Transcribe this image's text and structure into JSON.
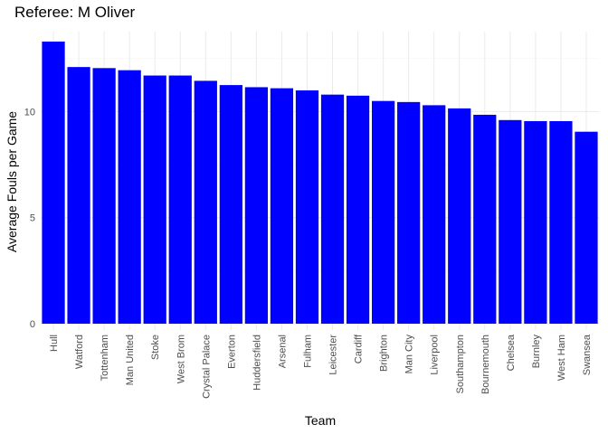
{
  "chart_data": {
    "type": "bar",
    "title": "Referee: M Oliver",
    "xlabel": "Team",
    "ylabel": "Average Fouls per Game",
    "categories": [
      "Hull",
      "Watford",
      "Tottenham",
      "Man United",
      "Stoke",
      "West Brom",
      "Crystal Palace",
      "Everton",
      "Huddersfield",
      "Arsenal",
      "Fulham",
      "Leicester",
      "Cardiff",
      "Brighton",
      "Man City",
      "Liverpool",
      "Southampton",
      "Bournemouth",
      "Chelsea",
      "Burnley",
      "West Ham",
      "Swansea"
    ],
    "values": [
      13.3,
      12.1,
      12.05,
      11.95,
      11.7,
      11.7,
      11.45,
      11.25,
      11.15,
      11.1,
      11.0,
      10.8,
      10.75,
      10.5,
      10.45,
      10.3,
      10.15,
      9.85,
      9.6,
      9.55,
      9.55,
      9.05
    ],
    "ylim": [
      0,
      13.96
    ],
    "yticks": [
      0,
      5,
      10
    ],
    "grid": true,
    "bar_color": "#0000ff"
  }
}
